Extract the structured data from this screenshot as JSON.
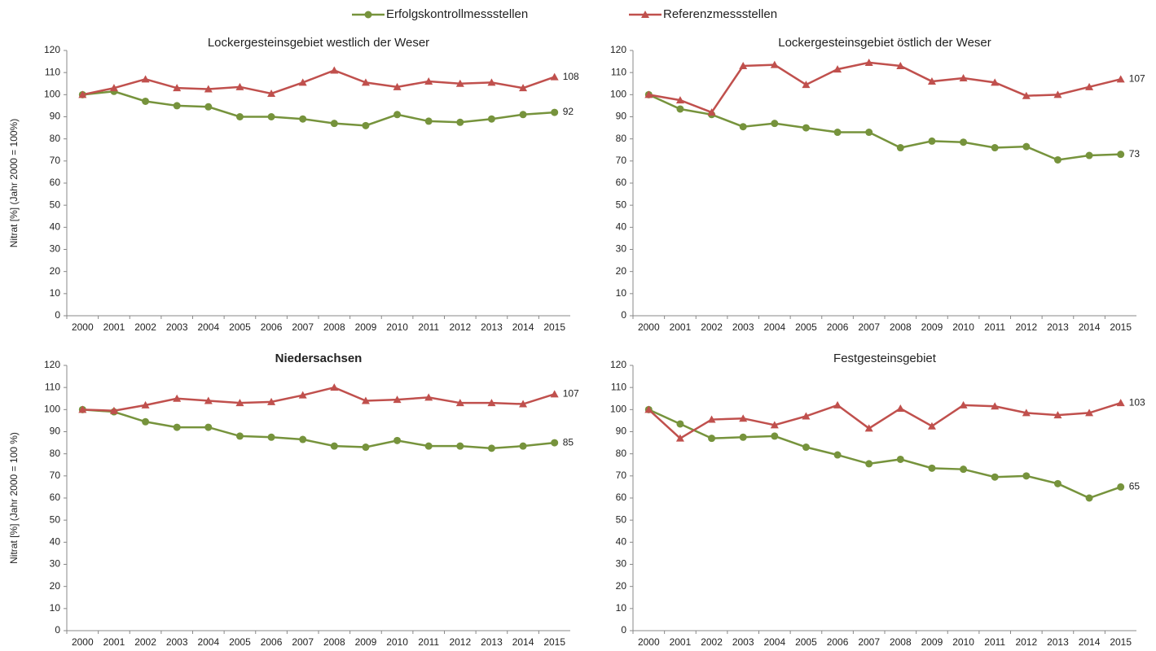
{
  "chart_data": [
    {
      "type": "line",
      "title": "Lockergesteinsgebiet westlich der Weser",
      "y_label": "Nitrat [%]  (Jahr 2000 = 100%)",
      "categories": [
        "2000",
        "2001",
        "2002",
        "2003",
        "2004",
        "2005",
        "2006",
        "2007",
        "2008",
        "2009",
        "2010",
        "2011",
        "2012",
        "2013",
        "2014",
        "2015"
      ],
      "series": [
        {
          "name": "Erfolgskontrollmessstellen",
          "color": "#76933c",
          "marker": "circle",
          "values": [
            100,
            101.5,
            97,
            95,
            94.5,
            90,
            90,
            89,
            87,
            86,
            91,
            88,
            87.5,
            89,
            91,
            92
          ]
        },
        {
          "name": "Referenzmessstellen",
          "color": "#c0504d",
          "marker": "triangle",
          "values": [
            100,
            103,
            107,
            103,
            102.5,
            103.5,
            100.5,
            105.5,
            111,
            105.5,
            103.5,
            106,
            105,
            105.5,
            103,
            108
          ]
        }
      ],
      "ylim": [
        0,
        120
      ],
      "yticks": [
        0,
        10,
        20,
        30,
        40,
        50,
        60,
        70,
        80,
        90,
        100,
        110,
        120
      ]
    },
    {
      "type": "line",
      "title": "Lockergesteinsgebiet östlich der Weser",
      "categories": [
        "2000",
        "2001",
        "2002",
        "2003",
        "2004",
        "2005",
        "2006",
        "2007",
        "2008",
        "2009",
        "2010",
        "2011",
        "2012",
        "2013",
        "2014",
        "2015"
      ],
      "series": [
        {
          "color": "#76933c",
          "marker": "circle",
          "values": [
            100,
            93.5,
            91,
            85.5,
            87,
            85,
            83,
            83,
            76,
            79,
            78.5,
            76,
            76.5,
            70.5,
            72.5,
            73
          ]
        },
        {
          "color": "#c0504d",
          "marker": "triangle",
          "values": [
            100,
            97.5,
            92,
            113,
            113.5,
            104.5,
            111.5,
            114.5,
            113,
            106,
            107.5,
            105.5,
            99.5,
            100,
            103.5,
            107
          ]
        }
      ],
      "ylim": [
        0,
        120
      ],
      "yticks": [
        0,
        10,
        20,
        30,
        40,
        50,
        60,
        70,
        80,
        90,
        100,
        110,
        120
      ]
    },
    {
      "type": "line",
      "title": "Niedersachsen",
      "y_label": "Nitrat [%] (Jahr 2000 = 100 %)",
      "categories": [
        "2000",
        "2001",
        "2002",
        "2003",
        "2004",
        "2005",
        "2006",
        "2007",
        "2008",
        "2009",
        "2010",
        "2011",
        "2012",
        "2013",
        "2014",
        "2015"
      ],
      "series": [
        {
          "color": "#76933c",
          "marker": "circle",
          "values": [
            100,
            99,
            94.5,
            92,
            92,
            88,
            87.5,
            86.5,
            83.5,
            83,
            86,
            83.5,
            83.5,
            82.5,
            83.5,
            85
          ]
        },
        {
          "color": "#c0504d",
          "marker": "triangle",
          "values": [
            100,
            99.5,
            102,
            105,
            104,
            103,
            103.5,
            106.5,
            110,
            104,
            104.5,
            105.5,
            103,
            103,
            102.5,
            107
          ]
        }
      ],
      "ylim": [
        0,
        120
      ],
      "yticks": [
        0,
        10,
        20,
        30,
        40,
        50,
        60,
        70,
        80,
        90,
        100,
        110,
        120
      ]
    },
    {
      "type": "line",
      "title": "Festgesteinsgebiet",
      "categories": [
        "2000",
        "2001",
        "2002",
        "2003",
        "2004",
        "2005",
        "2006",
        "2007",
        "2008",
        "2009",
        "2010",
        "2011",
        "2012",
        "2013",
        "2014",
        "2015"
      ],
      "series": [
        {
          "color": "#76933c",
          "marker": "circle",
          "values": [
            100,
            93.5,
            87,
            87.5,
            88,
            83,
            79.5,
            75.5,
            77.5,
            73.5,
            73,
            69.5,
            70,
            66.5,
            60,
            65
          ]
        },
        {
          "color": "#c0504d",
          "marker": "triangle",
          "values": [
            100,
            87,
            95.5,
            96,
            93,
            97,
            102,
            91.5,
            100.5,
            92.5,
            102,
            101.5,
            98.5,
            97.5,
            98.5,
            103
          ]
        }
      ],
      "ylim": [
        0,
        120
      ],
      "yticks": [
        0,
        10,
        20,
        30,
        40,
        50,
        60,
        70,
        80,
        90,
        100,
        110,
        120
      ]
    }
  ]
}
